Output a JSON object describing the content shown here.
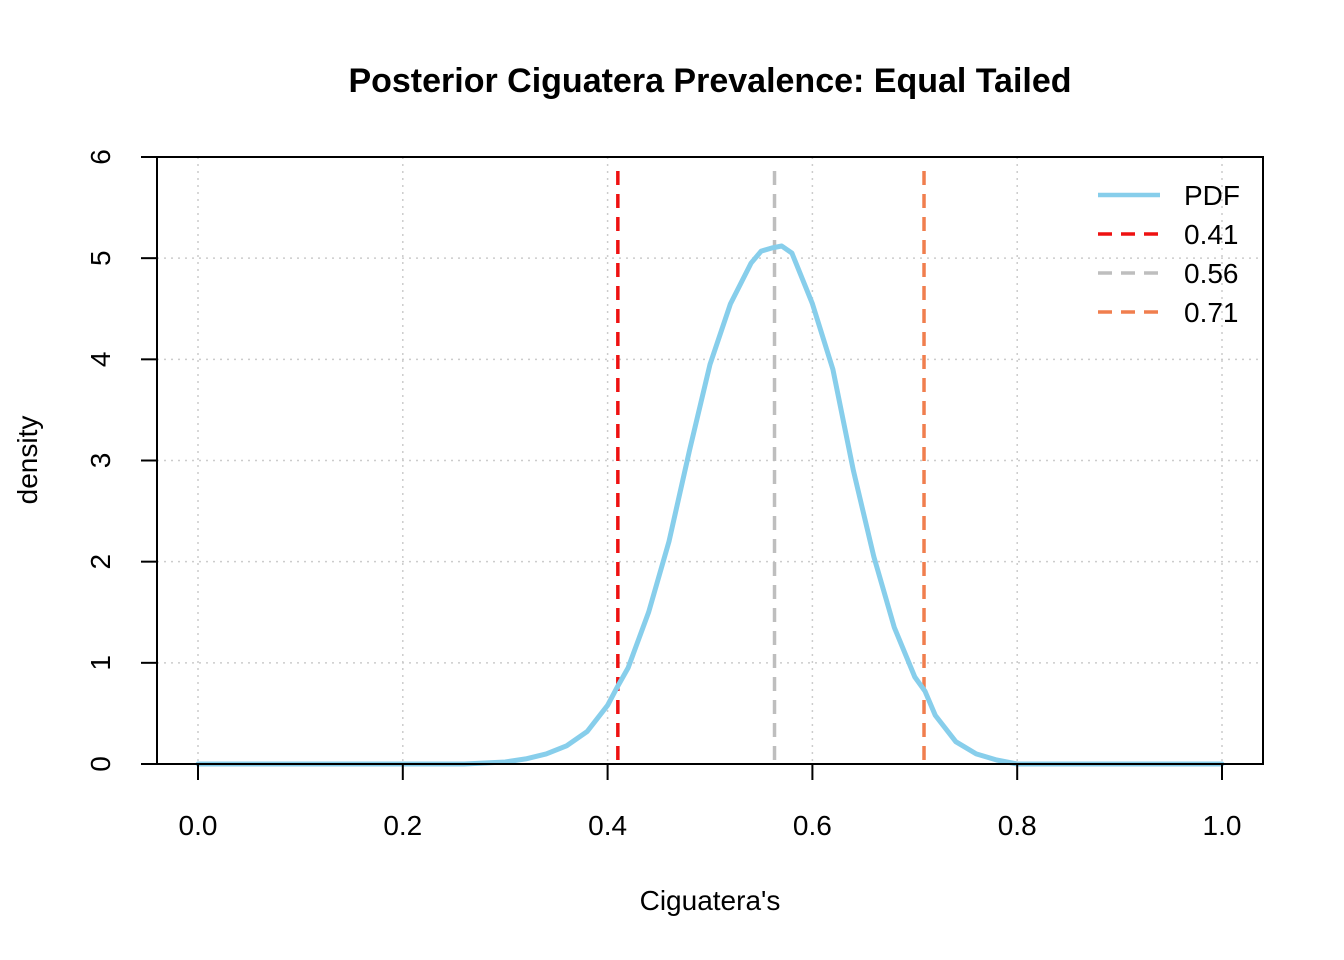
{
  "chart_data": {
    "type": "line",
    "title": "Posterior Ciguatera Prevalence: Equal Tailed",
    "xlabel": "Ciguatera's",
    "ylabel": "density",
    "xlim": [
      0,
      1
    ],
    "ylim": [
      0,
      6
    ],
    "x_ticks": [
      0.0,
      0.2,
      0.4,
      0.6,
      0.8,
      1.0
    ],
    "x_tick_labels": [
      "0.0",
      "0.2",
      "0.4",
      "0.6",
      "0.8",
      "1.0"
    ],
    "y_ticks": [
      0,
      1,
      2,
      3,
      4,
      5,
      6
    ],
    "y_tick_labels": [
      "0",
      "1",
      "2",
      "3",
      "4",
      "5",
      "6"
    ],
    "grid": true,
    "legend_position": "top-right",
    "series": [
      {
        "name": "PDF",
        "color": "#87CEEB",
        "style": "solid",
        "x": [
          0.0,
          0.26,
          0.3,
          0.32,
          0.34,
          0.36,
          0.38,
          0.4,
          0.41,
          0.42,
          0.44,
          0.46,
          0.48,
          0.5,
          0.52,
          0.54,
          0.55,
          0.56,
          0.57,
          0.58,
          0.6,
          0.62,
          0.64,
          0.66,
          0.68,
          0.7,
          0.71,
          0.72,
          0.74,
          0.76,
          0.78,
          0.8,
          1.0
        ],
        "y": [
          0.0,
          0.0,
          0.02,
          0.05,
          0.1,
          0.18,
          0.32,
          0.58,
          0.77,
          0.95,
          1.5,
          2.2,
          3.1,
          3.95,
          4.55,
          4.95,
          5.07,
          5.1,
          5.12,
          5.05,
          4.55,
          3.9,
          2.9,
          2.05,
          1.35,
          0.86,
          0.72,
          0.48,
          0.22,
          0.1,
          0.04,
          0.0,
          0.0
        ]
      }
    ],
    "vlines": [
      {
        "name": "0.41",
        "x": 0.41,
        "color": "#EE1111",
        "style": "dashed"
      },
      {
        "name": "0.56",
        "x": 0.563,
        "color": "#BEBEBE",
        "style": "dashed"
      },
      {
        "name": "0.71",
        "x": 0.709,
        "color": "#F07E4E",
        "style": "dashed"
      }
    ],
    "legend": [
      "PDF",
      "0.41",
      "0.56",
      "0.71"
    ]
  }
}
